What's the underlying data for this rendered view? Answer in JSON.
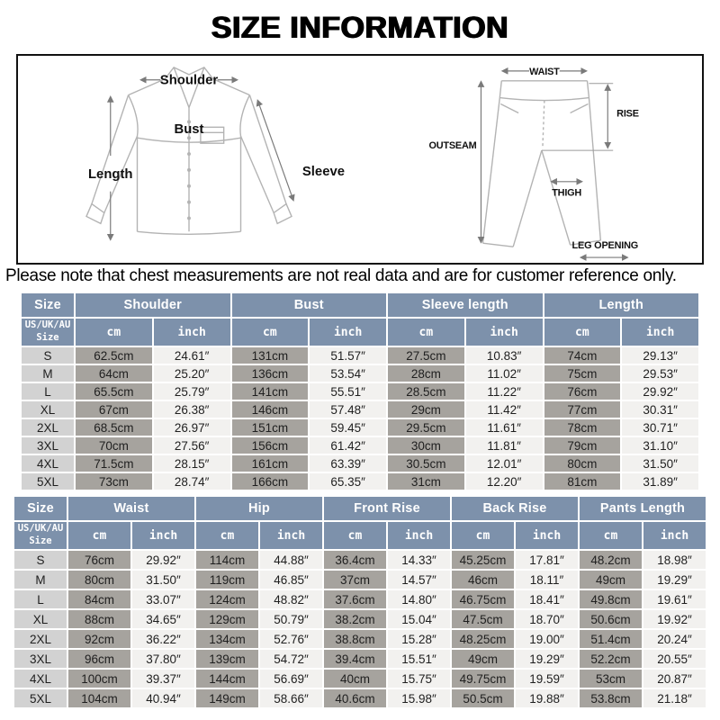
{
  "title": "SIZE INFORMATION",
  "note": "Please note that chest measurements are not real data and are for customer reference only.",
  "shirt_diagram": {
    "shoulder": "Shoulder",
    "length": "Length",
    "bust": "Bust",
    "sleeve": "Sleeve"
  },
  "pants_diagram": {
    "waist": "WAIST",
    "rise": "RISE",
    "outseam": "OUTSEAM",
    "thigh": "THIGH",
    "leg_opening": "LEG OPENING"
  },
  "colors": {
    "header_bg": "#7d91ab",
    "size_cell_bg": "#d2d2d2",
    "cm_cell_bg": "#a6a39e",
    "inch_cell_bg": "#f2f1ef",
    "note_bg": "#ffffff",
    "title_color": "#000000"
  },
  "tables": {
    "shirt": {
      "groups": [
        "Size",
        "Shoulder",
        "Bust",
        "Sleeve length",
        "Length"
      ],
      "size_subheader": "US/UK/AU\nSize",
      "unit_cm": "cm",
      "unit_inch": "inch",
      "rows": [
        {
          "size": "S",
          "values": [
            "62.5cm",
            "24.61″",
            "131cm",
            "51.57″",
            "27.5cm",
            "10.83″",
            "74cm",
            "29.13″"
          ]
        },
        {
          "size": "M",
          "values": [
            "64cm",
            "25.20″",
            "136cm",
            "53.54″",
            "28cm",
            "11.02″",
            "75cm",
            "29.53″"
          ]
        },
        {
          "size": "L",
          "values": [
            "65.5cm",
            "25.79″",
            "141cm",
            "55.51″",
            "28.5cm",
            "11.22″",
            "76cm",
            "29.92″"
          ]
        },
        {
          "size": "XL",
          "values": [
            "67cm",
            "26.38″",
            "146cm",
            "57.48″",
            "29cm",
            "11.42″",
            "77cm",
            "30.31″"
          ]
        },
        {
          "size": "2XL",
          "values": [
            "68.5cm",
            "26.97″",
            "151cm",
            "59.45″",
            "29.5cm",
            "11.61″",
            "78cm",
            "30.71″"
          ]
        },
        {
          "size": "3XL",
          "values": [
            "70cm",
            "27.56″",
            "156cm",
            "61.42″",
            "30cm",
            "11.81″",
            "79cm",
            "31.10″"
          ]
        },
        {
          "size": "4XL",
          "values": [
            "71.5cm",
            "28.15″",
            "161cm",
            "63.39″",
            "30.5cm",
            "12.01″",
            "80cm",
            "31.50″"
          ]
        },
        {
          "size": "5XL",
          "values": [
            "73cm",
            "28.74″",
            "166cm",
            "65.35″",
            "31cm",
            "12.20″",
            "81cm",
            "31.89″"
          ]
        }
      ]
    },
    "pants": {
      "groups": [
        "Size",
        "Waist",
        "Hip",
        "Front Rise",
        "Back Rise",
        "Pants Length"
      ],
      "size_subheader": "US/UK/AU\nSize",
      "unit_cm": "cm",
      "unit_inch": "inch",
      "rows": [
        {
          "size": "S",
          "values": [
            "76cm",
            "29.92″",
            "114cm",
            "44.88″",
            "36.4cm",
            "14.33″",
            "45.25cm",
            "17.81″",
            "48.2cm",
            "18.98″"
          ]
        },
        {
          "size": "M",
          "values": [
            "80cm",
            "31.50″",
            "119cm",
            "46.85″",
            "37cm",
            "14.57″",
            "46cm",
            "18.11″",
            "49cm",
            "19.29″"
          ]
        },
        {
          "size": "L",
          "values": [
            "84cm",
            "33.07″",
            "124cm",
            "48.82″",
            "37.6cm",
            "14.80″",
            "46.75cm",
            "18.41″",
            "49.8cm",
            "19.61″"
          ]
        },
        {
          "size": "XL",
          "values": [
            "88cm",
            "34.65″",
            "129cm",
            "50.79″",
            "38.2cm",
            "15.04″",
            "47.5cm",
            "18.70″",
            "50.6cm",
            "19.92″"
          ]
        },
        {
          "size": "2XL",
          "values": [
            "92cm",
            "36.22″",
            "134cm",
            "52.76″",
            "38.8cm",
            "15.28″",
            "48.25cm",
            "19.00″",
            "51.4cm",
            "20.24″"
          ]
        },
        {
          "size": "3XL",
          "values": [
            "96cm",
            "37.80″",
            "139cm",
            "54.72″",
            "39.4cm",
            "15.51″",
            "49cm",
            "19.29″",
            "52.2cm",
            "20.55″"
          ]
        },
        {
          "size": "4XL",
          "values": [
            "100cm",
            "39.37″",
            "144cm",
            "56.69″",
            "40cm",
            "15.75″",
            "49.75cm",
            "19.59″",
            "53cm",
            "20.87″"
          ]
        },
        {
          "size": "5XL",
          "values": [
            "104cm",
            "40.94″",
            "149cm",
            "58.66″",
            "40.6cm",
            "15.98″",
            "50.5cm",
            "19.88″",
            "53.8cm",
            "21.18″"
          ]
        }
      ]
    }
  }
}
